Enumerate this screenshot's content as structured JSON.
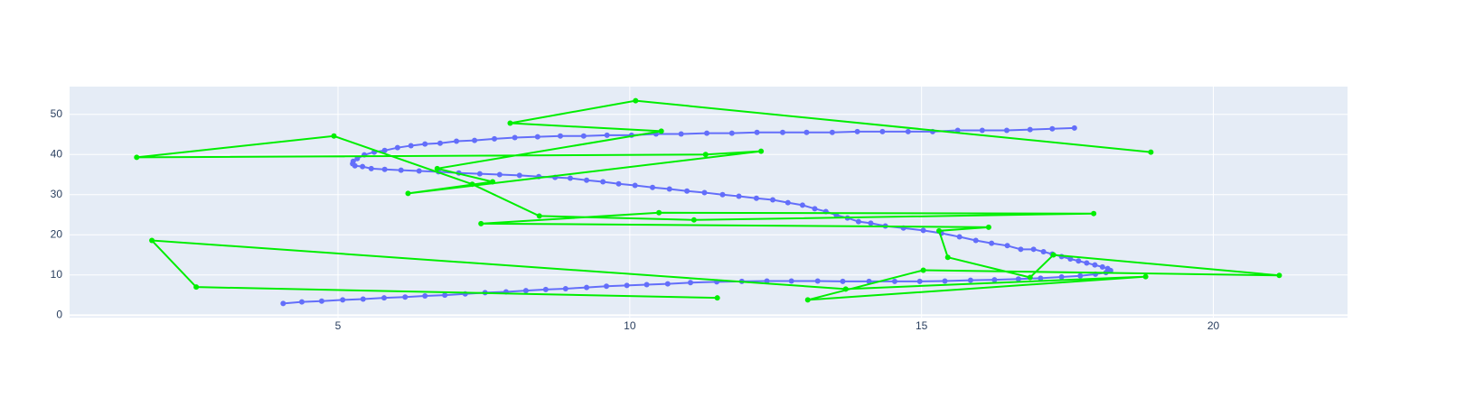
{
  "chart_data": {
    "type": "scatter",
    "mode": "lines+markers",
    "grid": true,
    "xlim": [
      0.4,
      22.3
    ],
    "ylim": [
      -0.6,
      56.9
    ],
    "xticks": [
      5,
      10,
      15,
      20
    ],
    "yticks": [
      0,
      10,
      20,
      30,
      40,
      50
    ],
    "series": [
      {
        "color": "#636efa",
        "x": [
          4.06,
          4.38,
          4.72,
          5.08,
          5.43,
          5.79,
          6.15,
          6.49,
          6.83,
          7.18,
          7.52,
          7.88,
          8.22,
          8.56,
          8.9,
          9.26,
          9.6,
          9.95,
          10.29,
          10.65,
          11.04,
          11.49,
          11.92,
          12.35,
          12.77,
          13.22,
          13.65,
          14.1,
          14.54,
          14.97,
          15.4,
          15.84,
          16.25,
          16.66,
          17.04,
          17.4,
          17.72,
          17.98,
          18.16,
          18.24,
          18.19,
          18.1,
          17.97,
          17.83,
          17.69,
          17.55,
          17.4,
          17.24,
          17.09,
          16.92,
          16.7,
          16.47,
          16.2,
          15.93,
          15.65,
          15.34,
          15.03,
          14.69,
          14.38,
          14.13,
          13.92,
          13.73,
          13.54,
          13.36,
          13.17,
          12.96,
          12.71,
          12.45,
          12.17,
          11.87,
          11.59,
          11.28,
          10.98,
          10.68,
          10.39,
          10.09,
          9.81,
          9.54,
          9.26,
          8.98,
          8.72,
          8.44,
          8.11,
          7.77,
          7.43,
          7.07,
          6.72,
          6.39,
          6.08,
          5.8,
          5.57,
          5.42,
          5.29,
          5.25,
          5.26,
          5.33,
          5.45,
          5.62,
          5.8,
          6.02,
          6.25,
          6.49,
          6.75,
          7.03,
          7.34,
          7.68,
          8.03,
          8.42,
          8.81,
          9.21,
          9.61,
          10.03,
          10.45,
          10.88,
          11.32,
          11.75,
          12.18,
          12.62,
          13.03,
          13.47,
          13.9,
          14.33,
          14.77,
          15.19,
          15.62,
          16.04,
          16.46,
          16.86,
          17.24,
          17.62
        ],
        "values": [
          2.9,
          3.3,
          3.5,
          3.8,
          4.0,
          4.3,
          4.5,
          4.8,
          5.0,
          5.3,
          5.6,
          5.8,
          6.1,
          6.4,
          6.6,
          6.9,
          7.2,
          7.4,
          7.6,
          7.8,
          8.1,
          8.3,
          8.4,
          8.5,
          8.5,
          8.5,
          8.4,
          8.4,
          8.4,
          8.4,
          8.5,
          8.7,
          8.8,
          9.0,
          9.2,
          9.5,
          9.8,
          10.2,
          10.6,
          11.1,
          11.6,
          12.0,
          12.5,
          13.0,
          13.5,
          14.0,
          14.6,
          15.2,
          15.8,
          16.4,
          16.4,
          17.3,
          17.9,
          18.6,
          19.5,
          20.4,
          21.1,
          21.7,
          22.2,
          22.9,
          23.3,
          24.2,
          24.9,
          25.8,
          26.5,
          27.4,
          28.0,
          28.7,
          29.1,
          29.6,
          30.0,
          30.5,
          30.9,
          31.4,
          31.8,
          32.3,
          32.7,
          33.2,
          33.6,
          34.1,
          34.3,
          34.5,
          34.8,
          35.0,
          35.2,
          35.4,
          35.7,
          35.9,
          36.1,
          36.3,
          36.5,
          37.0,
          37.2,
          37.7,
          38.3,
          39.0,
          39.9,
          40.6,
          41.0,
          41.7,
          42.2,
          42.6,
          42.8,
          43.3,
          43.5,
          43.9,
          44.2,
          44.4,
          44.6,
          44.6,
          44.8,
          44.8,
          45.1,
          45.1,
          45.3,
          45.3,
          45.5,
          45.5,
          45.5,
          45.5,
          45.7,
          45.7,
          45.7,
          45.7,
          46.0,
          46.0,
          46.0,
          46.2,
          46.4,
          46.6
        ]
      },
      {
        "color": "#00ee00",
        "x": [
          11.5,
          2.57,
          1.81,
          13.7,
          18.84,
          13.05,
          15.03,
          21.13,
          17.26,
          16.86,
          15.45,
          15.3,
          16.15,
          7.45,
          10.5,
          17.95,
          11.1,
          8.45,
          7.3,
          4.93,
          1.55,
          11.3,
          12.25,
          6.2,
          7.65,
          6.7,
          10.54,
          7.95,
          10.1,
          18.93
        ],
        "values": [
          4.3,
          7.0,
          18.6,
          6.5,
          9.6,
          3.8,
          11.2,
          9.9,
          15.0,
          9.4,
          14.4,
          21.0,
          21.9,
          22.8,
          25.5,
          25.3,
          23.7,
          24.7,
          32.6,
          44.6,
          39.3,
          40.0,
          40.8,
          30.3,
          33.2,
          36.5,
          45.8,
          47.8,
          53.4,
          40.6
        ]
      }
    ]
  }
}
